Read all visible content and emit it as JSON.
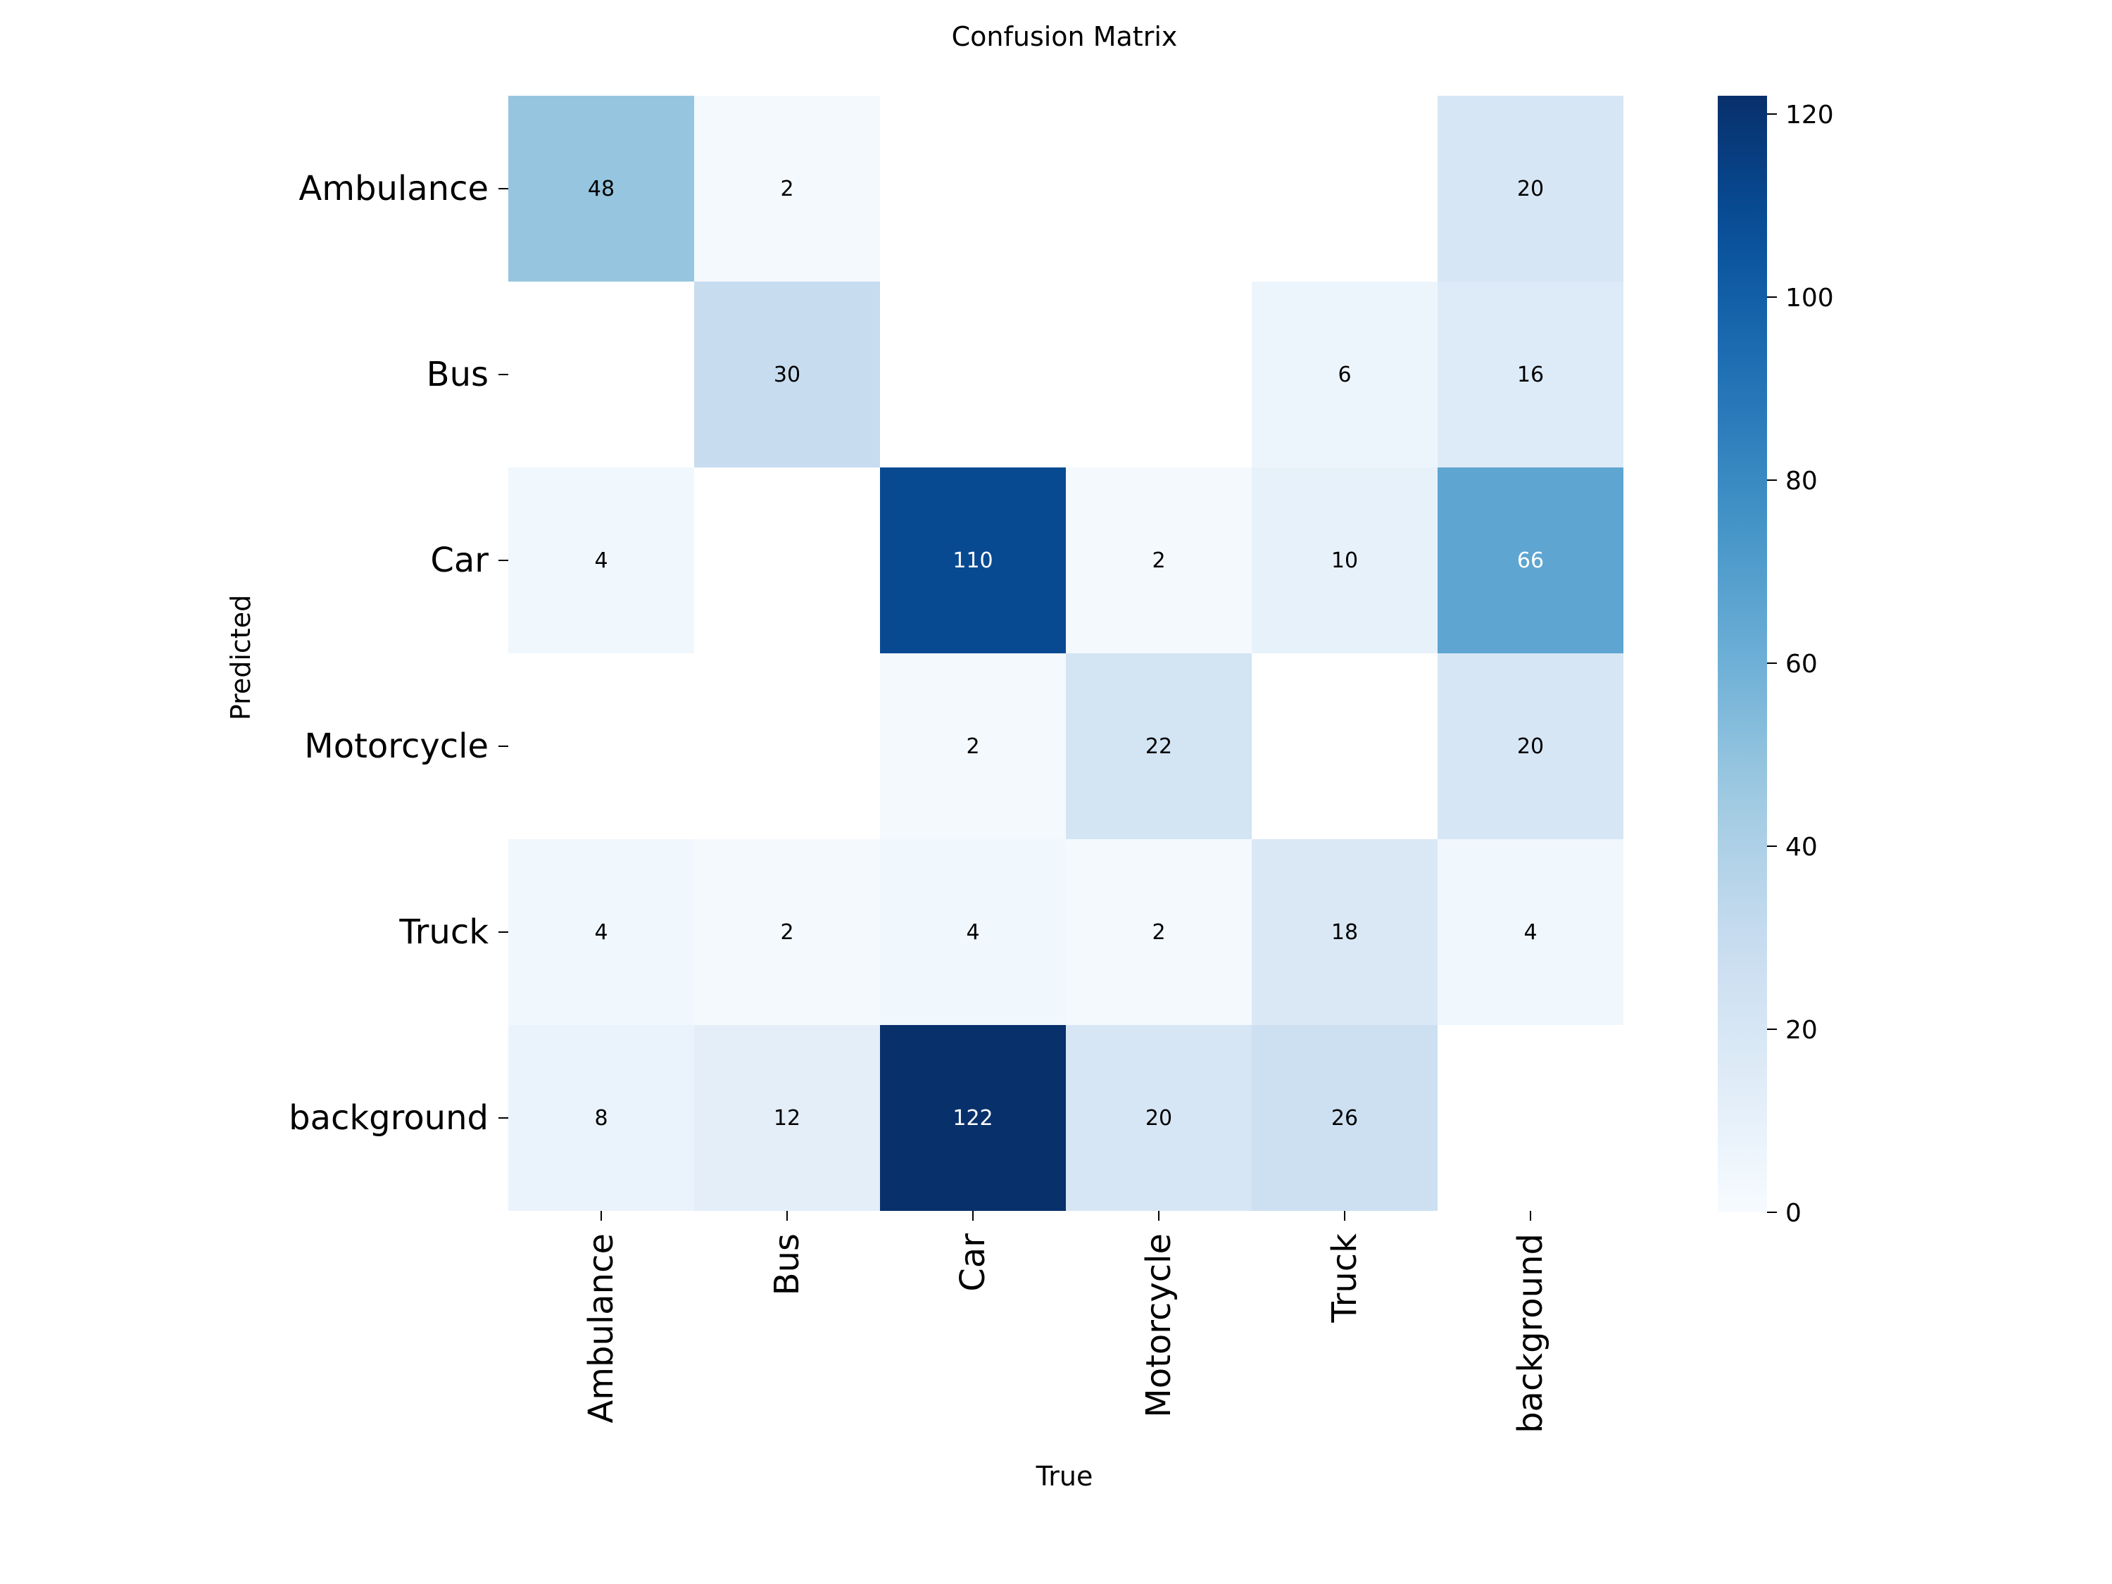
{
  "chart_data": {
    "type": "heatmap",
    "title": "Confusion Matrix",
    "xlabel": "True",
    "ylabel": "Predicted",
    "x_categories": [
      "Ambulance",
      "Bus",
      "Car",
      "Motorcycle",
      "Truck",
      "background"
    ],
    "y_categories": [
      "Ambulance",
      "Bus",
      "Car",
      "Motorcycle",
      "Truck",
      "background"
    ],
    "values": [
      [
        48,
        2,
        null,
        null,
        null,
        20
      ],
      [
        null,
        30,
        null,
        null,
        6,
        16
      ],
      [
        4,
        null,
        110,
        2,
        10,
        66
      ],
      [
        null,
        null,
        2,
        22,
        null,
        20
      ],
      [
        4,
        2,
        4,
        2,
        18,
        4
      ],
      [
        8,
        12,
        122,
        20,
        26,
        null
      ]
    ],
    "colorbar": {
      "ticks": [
        0,
        20,
        40,
        60,
        80,
        100,
        120
      ],
      "range": [
        0,
        122
      ],
      "colormap": "Blues"
    }
  },
  "colors": {
    "low": "#f7fbff",
    "high": "#08306b"
  }
}
